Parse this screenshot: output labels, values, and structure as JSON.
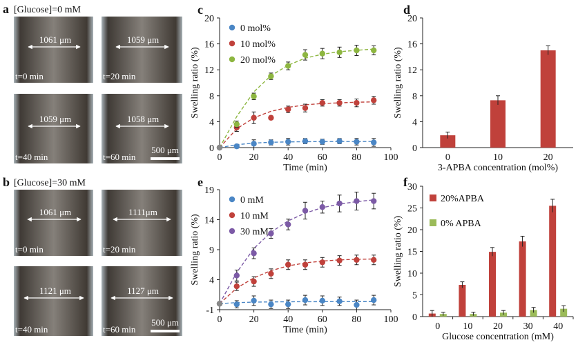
{
  "photos": {
    "a": {
      "label": "a",
      "condition": "[Glucose]=0 mM",
      "images": [
        {
          "width": "1061 μm",
          "time": "t=0 min"
        },
        {
          "width": "1059 μm",
          "time": "t=20 min"
        },
        {
          "width": "1059 μm",
          "time": "t=40 min"
        },
        {
          "width": "1058 μm",
          "time": "t=60 min"
        }
      ],
      "scalebar": "500 μm"
    },
    "b": {
      "label": "b",
      "condition": "[Glucose]=30 mM",
      "images": [
        {
          "width": "1061 μm",
          "time": "t=0 min"
        },
        {
          "width": "1111μm",
          "time": "t=20 min"
        },
        {
          "width": "1121 μm",
          "time": "t=40 min"
        },
        {
          "width": "1127 μm",
          "time": "t=60 min"
        }
      ],
      "scalebar": "500 μm"
    }
  },
  "chart_data": [
    {
      "panel": "c",
      "type": "scatter",
      "xlabel": "Time (min)",
      "ylabel": "Swelling ratio (%)",
      "xlim": [
        0,
        100
      ],
      "ylim": [
        0,
        20
      ],
      "xticks": [
        0,
        20,
        40,
        60,
        80,
        100
      ],
      "yticks": [
        0,
        4,
        8,
        12,
        16,
        20
      ],
      "x": [
        0,
        10,
        20,
        30,
        40,
        50,
        60,
        70,
        80,
        90
      ],
      "legend_position": "top-left",
      "series": [
        {
          "name": "0 mol%",
          "color": "#4a86c5",
          "values": [
            0,
            0.2,
            0.6,
            0.8,
            0.9,
            1.0,
            0.9,
            1.0,
            0.9,
            0.8
          ],
          "errors": [
            0.1,
            0.3,
            0.6,
            0.4,
            0.5,
            0.4,
            0.4,
            0.4,
            0.5,
            0.6
          ],
          "fit": [
            0,
            0.45,
            0.7,
            0.82,
            0.88,
            0.91,
            0.93,
            0.94,
            0.94,
            0.95
          ]
        },
        {
          "name": "10 mol%",
          "color": "#c0413b",
          "values": [
            0,
            3.1,
            4.6,
            4.6,
            5.9,
            6.1,
            6.9,
            6.9,
            6.9,
            7.3
          ],
          "errors": [
            0.1,
            0.6,
            0.9,
            0.3,
            0.5,
            0.6,
            0.5,
            0.5,
            0.6,
            0.6
          ],
          "fit": [
            0,
            2.9,
            4.6,
            5.6,
            6.2,
            6.6,
            6.8,
            6.9,
            7.0,
            7.05
          ]
        },
        {
          "name": "20 mol%",
          "color": "#8db640",
          "values": [
            0,
            3.6,
            7.9,
            11.0,
            12.6,
            14.3,
            14.5,
            14.7,
            15.0,
            15.0
          ],
          "errors": [
            0.1,
            0.5,
            0.5,
            0.5,
            0.6,
            0.8,
            0.8,
            0.8,
            0.8,
            0.7
          ],
          "fit": [
            0,
            4.8,
            8.6,
            11.1,
            12.7,
            13.8,
            14.4,
            14.8,
            15.0,
            15.2
          ]
        }
      ]
    },
    {
      "panel": "d",
      "type": "bar",
      "xlabel": "3-APBA concentration (mol%)",
      "ylabel": "Swelling ratio (%)",
      "ylim": [
        0,
        20
      ],
      "yticks": [
        0,
        4,
        8,
        12,
        16,
        20
      ],
      "categories": [
        "0",
        "10",
        "20"
      ],
      "series": [
        {
          "name": "",
          "color": "#c0413b",
          "values": [
            1.9,
            7.3,
            15.0
          ],
          "errors": [
            0.5,
            0.7,
            0.7
          ]
        }
      ]
    },
    {
      "panel": "e",
      "type": "scatter",
      "xlabel": "Time (min)",
      "ylabel": "Swelling ratio (%)",
      "xlim": [
        0,
        100
      ],
      "ylim": [
        -1,
        19
      ],
      "xticks": [
        0,
        20,
        40,
        60,
        80,
        100
      ],
      "yticks": [
        -1,
        4,
        9,
        14,
        19
      ],
      "x": [
        0,
        10,
        20,
        30,
        40,
        50,
        60,
        70,
        80,
        90
      ],
      "legend_position": "top-left",
      "series": [
        {
          "name": "0 mM",
          "color": "#4a86c5",
          "values": [
            0,
            -0.1,
            0.5,
            -0.1,
            -0.1,
            0.6,
            0.5,
            0.4,
            -0.2,
            0.6
          ],
          "errors": [
            0.1,
            0.6,
            0.8,
            0.7,
            0.7,
            0.8,
            0.8,
            0.7,
            0.8,
            0.8
          ],
          "fit": [
            0,
            0.18,
            0.26,
            0.3,
            0.32,
            0.33,
            0.34,
            0.34,
            0.35,
            0.35
          ]
        },
        {
          "name": "10 mM",
          "color": "#c0413b",
          "values": [
            0,
            2.9,
            3.7,
            5.0,
            6.5,
            6.5,
            6.9,
            7.2,
            7.3,
            7.3
          ],
          "errors": [
            0.1,
            0.7,
            0.8,
            0.8,
            0.8,
            0.8,
            0.8,
            0.8,
            0.8,
            0.8
          ],
          "fit": [
            0,
            2.6,
            4.3,
            5.5,
            6.3,
            6.8,
            7.1,
            7.3,
            7.4,
            7.45
          ]
        },
        {
          "name": "30 mM",
          "color": "#7c5aa6",
          "values": [
            0,
            4.7,
            8.4,
            11.7,
            13.2,
            15.5,
            16.1,
            16.7,
            17.1,
            17.1
          ],
          "errors": [
            0.1,
            0.9,
            0.9,
            0.8,
            0.9,
            1.4,
            1.0,
            1.4,
            1.5,
            1.3
          ],
          "fit": [
            0,
            5.2,
            9.2,
            11.9,
            13.8,
            15.1,
            16.0,
            16.6,
            17.0,
            17.3
          ]
        }
      ]
    },
    {
      "panel": "f",
      "type": "bar",
      "xlabel": "Glucose concentration (mM)",
      "ylabel": "Swelling ratio (%)",
      "ylim": [
        0,
        30
      ],
      "yticks": [
        0,
        5,
        10,
        15,
        20,
        25,
        30
      ],
      "categories": [
        "0",
        "10",
        "20",
        "30",
        "40"
      ],
      "legend_position": "top-left",
      "series": [
        {
          "name": "20%APBA",
          "color": "#c0413b",
          "values": [
            0.7,
            7.3,
            14.9,
            17.3,
            25.5
          ],
          "errors": [
            0.7,
            0.7,
            1.0,
            1.2,
            1.5
          ]
        },
        {
          "name": "0% APBA",
          "color": "#9bbb59",
          "values": [
            0.6,
            0.6,
            0.9,
            1.5,
            1.8
          ],
          "errors": [
            0.4,
            0.4,
            0.5,
            0.6,
            0.7
          ]
        }
      ]
    }
  ]
}
